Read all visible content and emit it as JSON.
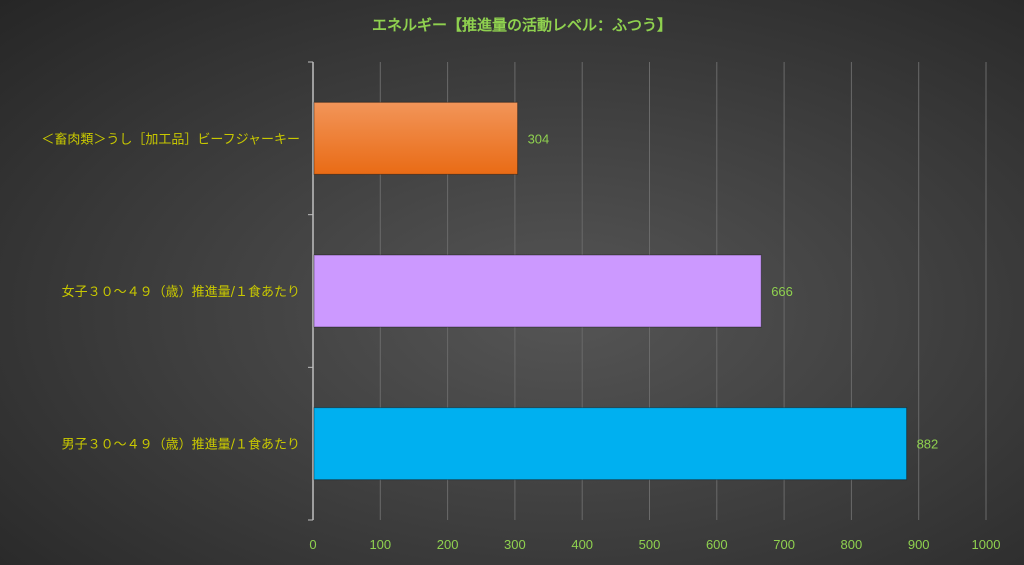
{
  "chart_data": {
    "type": "bar",
    "orientation": "horizontal",
    "title": "エネルギー【推進量の活動レベル：ふつう】",
    "categories": [
      "＜畜肉類＞うし［加工品］ビーフジャーキー",
      "女子３０～４９（歳）推進量/１食あたり",
      "男子３０～４９（歳）推進量/１食あたり"
    ],
    "values": [
      304,
      666,
      882
    ],
    "colors": [
      "#ee7421",
      "#cc99ff",
      "#00b0f0"
    ],
    "xlim": [
      0,
      1000
    ],
    "xticks": [
      0,
      100,
      200,
      300,
      400,
      500,
      600,
      700,
      800,
      900,
      1000
    ],
    "grid": true,
    "data_labels": true,
    "legend": "none",
    "label_color": "#c8c800",
    "tick_color": "#8fd14f"
  }
}
